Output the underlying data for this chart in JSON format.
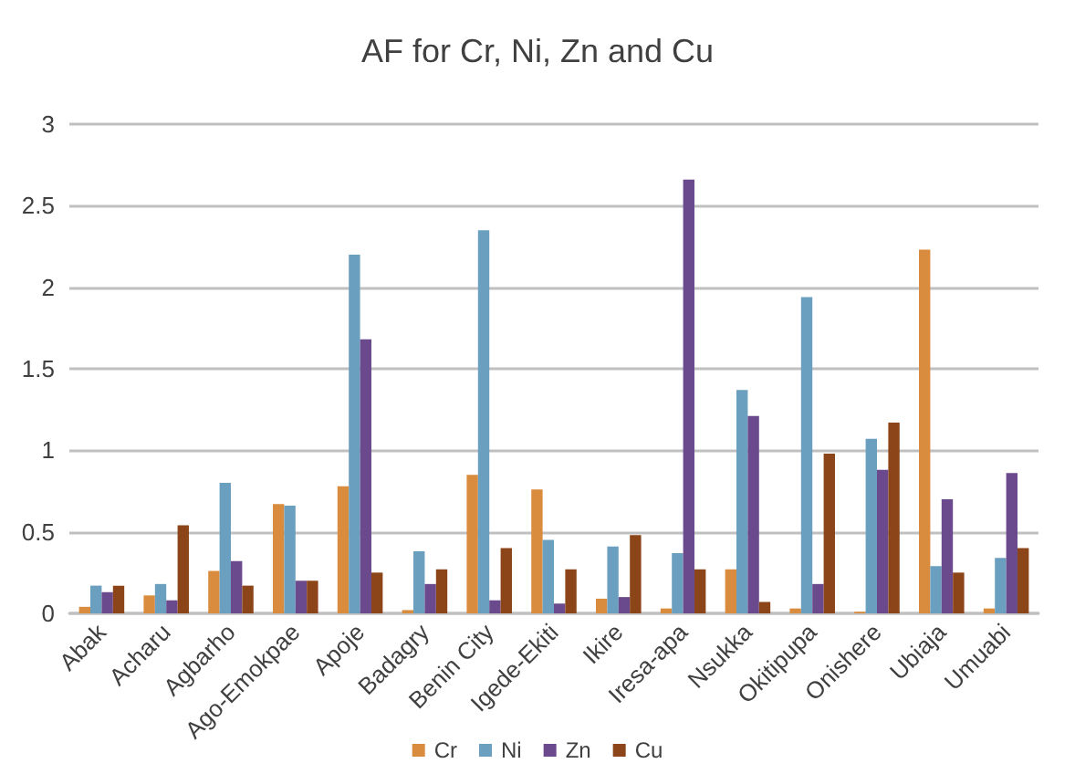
{
  "chart_data": {
    "type": "bar",
    "title": "AF for Cr, Ni, Zn and Cu",
    "categories": [
      "Abak",
      "Acharu",
      "Agbarho",
      "Ago-Emokpae",
      "Apoje",
      "Badagry",
      "Benin City",
      "Igede-Ekiti",
      "Ikire",
      "Iresa-apa",
      "Nsukka",
      "Okitipupa",
      "Onishere",
      "Ubiaja",
      "Umuabi"
    ],
    "series": [
      {
        "name": "Cr",
        "color": "#d98b3e",
        "values": [
          0.04,
          0.11,
          0.26,
          0.67,
          0.78,
          0.02,
          0.85,
          0.76,
          0.09,
          0.03,
          0.27,
          0.03,
          0.01,
          2.23,
          0.03
        ]
      },
      {
        "name": "Ni",
        "color": "#6a9fbf",
        "values": [
          0.17,
          0.18,
          0.8,
          0.66,
          2.2,
          0.38,
          2.35,
          0.45,
          0.41,
          0.37,
          1.37,
          1.94,
          1.07,
          0.29,
          0.34
        ]
      },
      {
        "name": "Zn",
        "color": "#6a4a8c",
        "values": [
          0.13,
          0.08,
          0.32,
          0.2,
          1.68,
          0.18,
          0.08,
          0.06,
          0.1,
          2.66,
          1.21,
          0.18,
          0.88,
          0.7,
          0.86
        ]
      },
      {
        "name": "Cu",
        "color": "#8b4519",
        "values": [
          0.17,
          0.54,
          0.17,
          0.2,
          0.25,
          0.27,
          0.4,
          0.27,
          0.48,
          0.27,
          0.07,
          0.98,
          1.17,
          0.25,
          0.4
        ]
      }
    ],
    "ylim": [
      0,
      3
    ],
    "yticks": [
      0,
      0.5,
      1,
      1.5,
      2,
      2.5,
      3
    ],
    "grid": "y",
    "legend": "bottom"
  }
}
